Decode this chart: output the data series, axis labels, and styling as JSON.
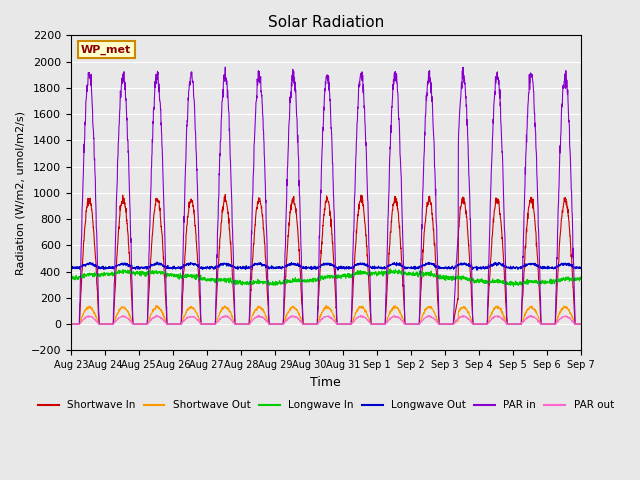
{
  "title": "Solar Radiation",
  "ylabel": "Radiation (W/m2, umol/m2/s)",
  "xlabel": "Time",
  "ylim": [
    -200,
    2200
  ],
  "yticks": [
    -200,
    0,
    200,
    400,
    600,
    800,
    1000,
    1200,
    1400,
    1600,
    1800,
    2000,
    2200
  ],
  "x_tick_labels": [
    "Aug 23",
    "Aug 24",
    "Aug 25",
    "Aug 26",
    "Aug 27",
    "Aug 28",
    "Aug 29",
    "Aug 30",
    "Aug 31",
    "Sep 1",
    "Sep 2",
    "Sep 3",
    "Sep 4",
    "Sep 5",
    "Sep 6",
    "Sep 7"
  ],
  "num_days": 15,
  "legend_label": "WP_met",
  "series_colors": {
    "shortwave_in": "#cc0000",
    "shortwave_out": "#ff9900",
    "longwave_in": "#00cc00",
    "longwave_out": "#0000cc",
    "par_in": "#8800cc",
    "par_out": "#ff66cc"
  },
  "series_names": [
    "Shortwave In",
    "Shortwave Out",
    "Longwave In",
    "Longwave Out",
    "PAR in",
    "PAR out"
  ],
  "background_color": "#e8e8e8",
  "plot_bg_color": "#e8e8e8",
  "grid_color": "#ffffff",
  "n_points_per_day": 144,
  "shortwave_in_peak": 950,
  "shortwave_out_peak": 130,
  "longwave_in_base": 370,
  "longwave_in_amplitude": 40,
  "longwave_out_base": 430,
  "longwave_out_amplitude": 60,
  "par_in_peak": 1900,
  "par_out_peak": 60
}
